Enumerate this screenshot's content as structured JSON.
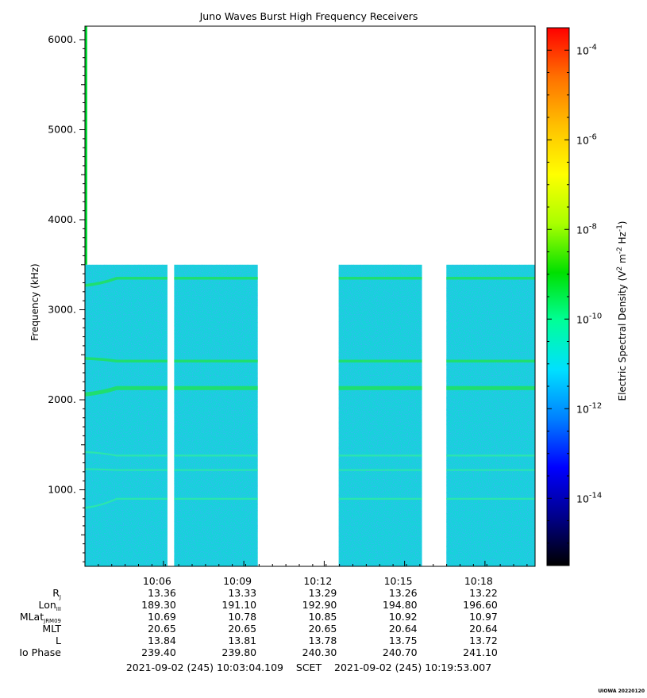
{
  "chart_data": {
    "type": "heatmap",
    "title": "Juno Waves Burst High Frequency Receivers",
    "ylabel": "Frequency (kHz)",
    "ylim": [
      150,
      6150
    ],
    "y_ticks": [
      {
        "value": 1000,
        "label": "1000."
      },
      {
        "value": 2000,
        "label": "2000."
      },
      {
        "value": 3000,
        "label": "3000."
      },
      {
        "value": 4000,
        "label": "4000."
      },
      {
        "value": 5000,
        "label": "5000."
      },
      {
        "value": 6000,
        "label": "6000."
      }
    ],
    "x_range_minutes": [
      0,
      16.8
    ],
    "x_ticks": [
      {
        "minute": 2.93,
        "label": "10:06"
      },
      {
        "minute": 5.93,
        "label": "10:09"
      },
      {
        "minute": 8.93,
        "label": "10:12"
      },
      {
        "minute": 11.93,
        "label": "10:15"
      },
      {
        "minute": 14.93,
        "label": "10:18"
      }
    ],
    "data_max_frequency_khz": 3500,
    "data_segments_minutes": [
      [
        0.0,
        3.08
      ],
      [
        3.33,
        6.45
      ],
      [
        9.47,
        12.58
      ],
      [
        13.49,
        16.8
      ]
    ],
    "early_trace": {
      "minute": 0.02,
      "freq_range": [
        3500,
        6150
      ],
      "color": "#00dd33"
    },
    "emission_lines": [
      {
        "freq_start": 3270,
        "freq_end": 3350,
        "level": "strong"
      },
      {
        "freq_start": 2460,
        "freq_end": 2430,
        "level": "strong"
      },
      {
        "freq_start": 2060,
        "freq_end": 2130,
        "level": "strongest"
      },
      {
        "freq_start": 1420,
        "freq_end": 1380,
        "level": "weak"
      },
      {
        "freq_start": 1230,
        "freq_end": 1220,
        "level": "weak"
      },
      {
        "freq_start": 800,
        "freq_end": 900,
        "level": "weak"
      }
    ],
    "colorbar": {
      "label": "Electric Spectral Density (V² m⁻² Hz⁻¹)",
      "label_parts": [
        "Electric Spectral Density (V",
        "2",
        " m",
        "-2",
        " Hz",
        "-1",
        ")"
      ],
      "scale": "log",
      "range_log10": [
        -15.5,
        -3.5
      ],
      "ticks": [
        {
          "exp": -4,
          "label": "10",
          "sup": "-4"
        },
        {
          "exp": -6,
          "label": "10",
          "sup": "-6"
        },
        {
          "exp": -8,
          "label": "10",
          "sup": "-8"
        },
        {
          "exp": -10,
          "label": "10",
          "sup": "-10"
        },
        {
          "exp": -12,
          "label": "10",
          "sup": "-12"
        },
        {
          "exp": -14,
          "label": "10",
          "sup": "-14"
        }
      ],
      "colors": [
        "#000000",
        "#00008b",
        "#0000ff",
        "#0080ff",
        "#00e0ff",
        "#00ff99",
        "#00e000",
        "#aaff00",
        "#ffff00",
        "#ffc000",
        "#ff7000",
        "#ff0000"
      ]
    },
    "ephemeris": {
      "rows": [
        {
          "label": "R",
          "sub": "J",
          "values": [
            "13.36",
            "13.33",
            "13.29",
            "13.26",
            "13.22"
          ]
        },
        {
          "label": "Lon",
          "sub": "III",
          "values": [
            "189.30",
            "191.10",
            "192.90",
            "194.80",
            "196.60"
          ]
        },
        {
          "label": "MLat",
          "sub": "JRM09",
          "values": [
            "10.69",
            "10.78",
            "10.85",
            "10.92",
            "10.97"
          ]
        },
        {
          "label": "MLT",
          "sub": "",
          "values": [
            "20.65",
            "20.65",
            "20.65",
            "20.64",
            "20.64"
          ]
        },
        {
          "label": "L",
          "sub": "",
          "values": [
            "13.84",
            "13.81",
            "13.78",
            "13.75",
            "13.72"
          ]
        },
        {
          "label": "Io Phase",
          "sub": "",
          "values": [
            "239.40",
            "239.80",
            "240.30",
            "240.70",
            "241.10"
          ]
        }
      ]
    },
    "time_span_label": "2021-09-02 (245) 10:03:04.109    SCET    2021-09-02 (245) 10:19:53.007",
    "footer_stamp": "UIOWA 20220120"
  }
}
